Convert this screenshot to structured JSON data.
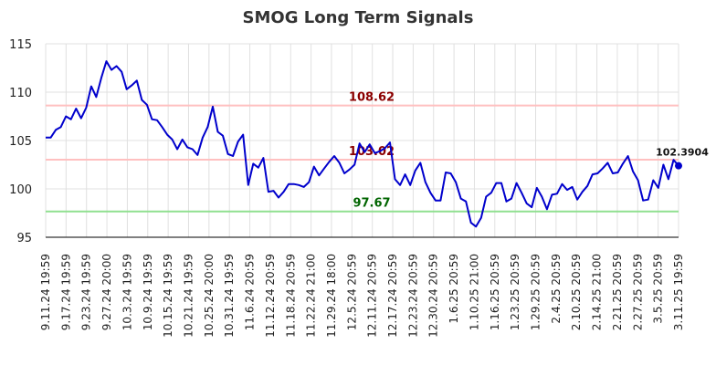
{
  "chart_data": {
    "type": "line",
    "title": "SMOG Long Term Signals",
    "xlabel": "",
    "ylabel": "",
    "ylim": [
      95,
      115
    ],
    "yticks": [
      95,
      100,
      105,
      110,
      115
    ],
    "grid": true,
    "x_tick_labels": [
      "9.11.24 19:59",
      "9.17.24 19:59",
      "9.23.24 19:59",
      "9.27.24 20:00",
      "10.3.24 19:59",
      "10.9.24 19:59",
      "10.15.24 19:59",
      "10.21.24 19:59",
      "10.25.24 20:00",
      "10.31.24 19:59",
      "11.6.24 20:59",
      "11.12.24 20:59",
      "11.18.24 20:59",
      "11.22.24 21:00",
      "11.29.24 18:00",
      "12.5.24 20:59",
      "12.11.24 20:59",
      "12.17.24 20:59",
      "12.23.24 20:59",
      "12.30.24 20:59",
      "1.6.25 20:59",
      "1.10.25 21:00",
      "1.16.25 20:59",
      "1.23.25 20:59",
      "1.29.25 20:59",
      "2.4.25 20:59",
      "2.10.25 20:59",
      "2.14.25 21:00",
      "2.21.25 20:59",
      "2.27.25 20:59",
      "3.5.25 20:59",
      "3.11.25 19:59"
    ],
    "series": [
      {
        "values": [
          105.3,
          105.3,
          106.1,
          106.4,
          107.5,
          107.2,
          108.3,
          107.3,
          108.4,
          110.6,
          109.5,
          111.5,
          113.2,
          112.3,
          112.7,
          112.1,
          110.3,
          110.7,
          111.2,
          109.2,
          108.7,
          107.2,
          107.1,
          106.4,
          105.6,
          105.1,
          104.1,
          105.1,
          104.3,
          104.1,
          103.5,
          105.3,
          106.4,
          108.5,
          105.9,
          105.5,
          103.6,
          103.4,
          104.9,
          105.6,
          100.4,
          102.6,
          102.2,
          103.2,
          99.7,
          99.8,
          99.1,
          99.7,
          100.5,
          100.5,
          100.4,
          100.2,
          100.7,
          102.3,
          101.4,
          102.1,
          102.8,
          103.4,
          102.7,
          101.6,
          102.0,
          102.5,
          104.7,
          103.8,
          104.6,
          103.7,
          103.9,
          104.2,
          104.8,
          101.0,
          100.4,
          101.5,
          100.4,
          101.9,
          102.7,
          100.7,
          99.6,
          98.8,
          98.8,
          101.7,
          101.6,
          100.7,
          99.0,
          98.7,
          96.5,
          96.1,
          97.0,
          99.2,
          99.6,
          100.6,
          100.6,
          98.7,
          99.0,
          100.6,
          99.6,
          98.5,
          98.1,
          100.1,
          99.2,
          97.9,
          99.4,
          99.5,
          100.5,
          99.9,
          100.2,
          98.9,
          99.7,
          100.3,
          101.5,
          101.6,
          102.1,
          102.7,
          101.6,
          101.7,
          102.6,
          103.4,
          101.8,
          100.9,
          98.8,
          98.9,
          100.9,
          100.1,
          102.5,
          101.0,
          103.0,
          102.3904
        ]
      }
    ],
    "reference_lines": [
      {
        "value": 108.62,
        "label": "108.62",
        "line_color": "#ffc0c0",
        "label_color": "#8b0000"
      },
      {
        "value": 103.02,
        "label": "103.02",
        "line_color": "#ffc0c0",
        "label_color": "#8b0000"
      },
      {
        "value": 97.67,
        "label": "97.67",
        "line_color": "#90e090",
        "label_color": "#006400"
      }
    ],
    "last_point_label": "102.3904",
    "colors": {
      "line": "#0000cc",
      "grid": "#e0e0e0",
      "axis": "#000000"
    }
  }
}
